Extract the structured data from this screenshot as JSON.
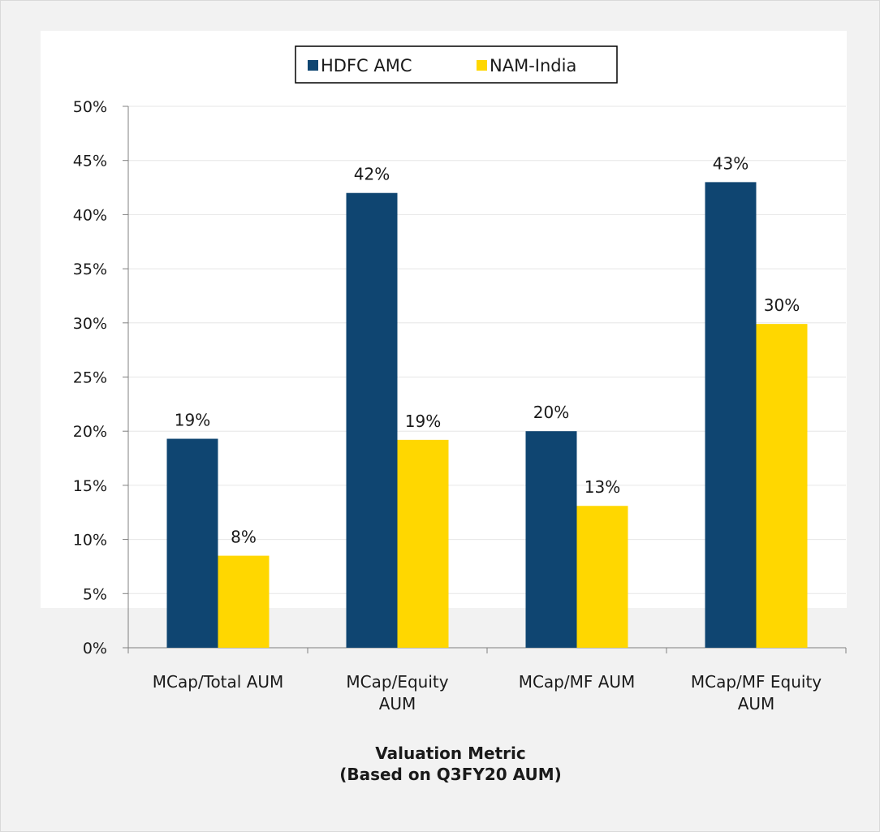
{
  "colors": {
    "hdfc": "#0f4571",
    "nam": "#ffd700",
    "grid": "#e6e6e6",
    "axis": "#808080"
  },
  "chart_data": {
    "type": "bar",
    "categories": [
      [
        "MCap/Total AUM"
      ],
      [
        "MCap/Equity",
        "AUM"
      ],
      [
        "MCap/MF AUM"
      ],
      [
        "MCap/MF Equity",
        "AUM"
      ]
    ],
    "series": [
      {
        "name": "HDFC AMC",
        "values": [
          19.3,
          42.0,
          20.0,
          43.0
        ],
        "labels": [
          "19%",
          "42%",
          "20%",
          "43%"
        ]
      },
      {
        "name": "NAM-India",
        "values": [
          8.5,
          19.2,
          13.1,
          29.9
        ],
        "labels": [
          "8%",
          "19%",
          "13%",
          "30%"
        ]
      }
    ],
    "y_ticks": [
      "0%",
      "5%",
      "10%",
      "15%",
      "20%",
      "25%",
      "30%",
      "35%",
      "40%",
      "45%",
      "50%"
    ],
    "ylim": [
      0,
      50
    ],
    "xlabel": [
      "Valuation Metric",
      "(Based on Q3FY20 AUM)"
    ],
    "ylabel": "",
    "legend_position": "top-center",
    "grid": true
  }
}
